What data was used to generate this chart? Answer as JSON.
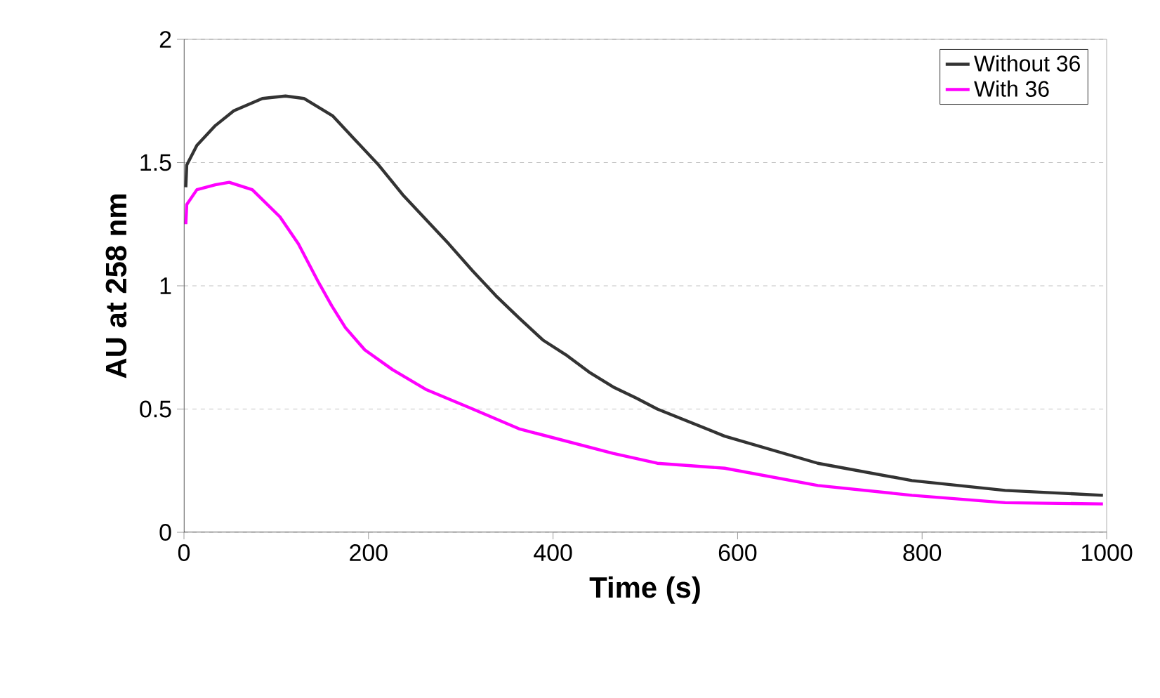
{
  "chart_data": {
    "type": "line",
    "xlabel": "Time (s)",
    "ylabel": "AU at 258 nm",
    "xlim": [
      0,
      1000
    ],
    "ylim": [
      0,
      2
    ],
    "xticks": [
      0,
      200,
      400,
      600,
      800,
      1000
    ],
    "yticks": [
      0,
      0.5,
      1,
      1.5,
      2
    ],
    "grid": "y",
    "legend": "top right",
    "marker": "none",
    "line_style": "solid",
    "series": [
      {
        "name": "Without 36",
        "color": "#333333",
        "x": [
          2,
          3,
          14,
          34,
          54,
          85,
          110,
          130,
          161,
          186,
          211,
          237,
          262,
          287,
          313,
          338,
          363,
          389,
          414,
          439,
          465,
          490,
          513,
          586,
          687,
          789,
          890,
          996
        ],
        "values": [
          1.4,
          1.49,
          1.57,
          1.65,
          1.71,
          1.76,
          1.77,
          1.76,
          1.69,
          1.59,
          1.49,
          1.37,
          1.27,
          1.17,
          1.06,
          0.96,
          0.87,
          0.78,
          0.72,
          0.65,
          0.59,
          0.545,
          0.5,
          0.39,
          0.28,
          0.21,
          0.17,
          0.15
        ]
      },
      {
        "name": "With 36",
        "color": "#ff00ff",
        "x": [
          2,
          3,
          14,
          34,
          49,
          74,
          104,
          124,
          145,
          160,
          175,
          196,
          226,
          262,
          313,
          363,
          414,
          465,
          513,
          586,
          687,
          789,
          890,
          996
        ],
        "values": [
          1.25,
          1.33,
          1.39,
          1.41,
          1.42,
          1.39,
          1.28,
          1.17,
          1.02,
          0.92,
          0.83,
          0.74,
          0.66,
          0.58,
          0.5,
          0.42,
          0.37,
          0.32,
          0.28,
          0.26,
          0.19,
          0.15,
          0.12,
          0.115
        ]
      }
    ]
  }
}
